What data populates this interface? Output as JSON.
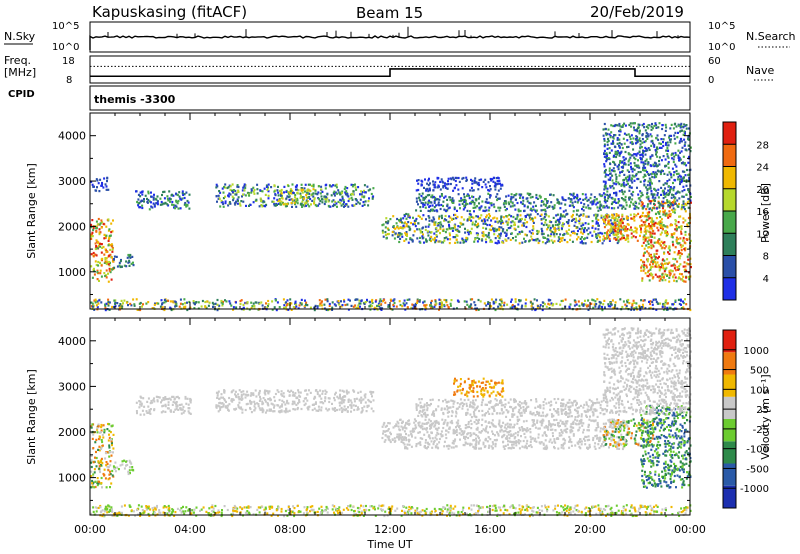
{
  "header": {
    "station": "Kapuskasing (fitACF)",
    "beam": "Beam 15",
    "date": "20/Feb/2019"
  },
  "nsky_panel": {
    "left_label": "N.Sky",
    "right_label": "N.Search",
    "ticks_left": [
      "10^5",
      "10^0"
    ],
    "ticks_right": [
      "10^5",
      "10^0"
    ]
  },
  "freq_panel": {
    "left_label_1": "Freq.",
    "left_label_2": "[MHz]",
    "cpid_label": "CPID",
    "right_label": "Nave",
    "ticks_left": [
      "18",
      "8"
    ],
    "ticks_right": [
      "60",
      "0"
    ],
    "cpid_text": "themis -3300"
  },
  "colors": {
    "power": [
      "#1f2fe6",
      "#2a4fa8",
      "#2e7f5a",
      "#48a84a",
      "#b6d82c",
      "#f0b800",
      "#f06a10",
      "#e02010"
    ],
    "velocity": [
      "#1c2fb0",
      "#2a5aa8",
      "#2e8a4a",
      "#6ccc30",
      "#c8c8c8",
      "#f0b800",
      "#f07a10",
      "#e02010"
    ]
  },
  "chart_data": [
    {
      "type": "heatmap",
      "name": "power",
      "xlabel": "",
      "ylabel": "Slant Range [km]",
      "x_ticks": [
        "00:00",
        "04:00",
        "08:00",
        "12:00",
        "16:00",
        "20:00",
        "00:00"
      ],
      "xlim": [
        0,
        24
      ],
      "ylim": [
        180,
        4500
      ],
      "y_ticks": [
        1000,
        2000,
        3000,
        4000
      ],
      "colorbar_label": "Power [dB]",
      "colorbar_ticks": [
        "4",
        "8",
        "12",
        "16",
        "20",
        "24",
        "28"
      ],
      "regions": [
        {
          "t0": 0.0,
          "t1": 0.9,
          "r0": 800,
          "r1": 2200,
          "level": [
            3,
            7
          ]
        },
        {
          "t0": 0.9,
          "t1": 1.7,
          "r0": 1100,
          "r1": 1400,
          "level": [
            1,
            3
          ]
        },
        {
          "t0": 0.0,
          "t1": 0.7,
          "r0": 2800,
          "r1": 3100,
          "level": [
            0,
            1
          ]
        },
        {
          "t0": 1.8,
          "t1": 4.0,
          "r0": 2400,
          "r1": 2800,
          "level": [
            0,
            3
          ]
        },
        {
          "t0": 5.0,
          "t1": 11.3,
          "r0": 2450,
          "r1": 2950,
          "level": [
            0,
            4
          ]
        },
        {
          "t0": 7.5,
          "t1": 9.0,
          "r0": 2500,
          "r1": 2850,
          "level": [
            3,
            5
          ]
        },
        {
          "t0": 11.6,
          "t1": 12.4,
          "r0": 1750,
          "r1": 2250,
          "level": [
            1,
            5
          ]
        },
        {
          "t0": 12.3,
          "t1": 21.5,
          "r0": 1650,
          "r1": 2300,
          "level": [
            0,
            5
          ]
        },
        {
          "t0": 13.0,
          "t1": 20.5,
          "r0": 2350,
          "r1": 2750,
          "level": [
            0,
            3
          ]
        },
        {
          "t0": 13.0,
          "t1": 16.5,
          "r0": 2800,
          "r1": 3100,
          "level": [
            0,
            1
          ]
        },
        {
          "t0": 20.5,
          "t1": 22.5,
          "r0": 1700,
          "r1": 2300,
          "level": [
            4,
            7
          ]
        },
        {
          "t0": 22.0,
          "t1": 24.0,
          "r0": 800,
          "r1": 2600,
          "level": [
            3,
            7
          ]
        },
        {
          "t0": 20.5,
          "t1": 24.0,
          "r0": 2400,
          "r1": 4300,
          "level": [
            0,
            3
          ]
        },
        {
          "t0": 0.0,
          "t1": 24.0,
          "r0": 180,
          "r1": 420,
          "level": [
            0,
            6
          ]
        }
      ]
    },
    {
      "type": "heatmap",
      "name": "velocity",
      "xlabel": "Time UT",
      "ylabel": "Slant Range [km]",
      "x_ticks": [
        "00:00",
        "04:00",
        "08:00",
        "12:00",
        "16:00",
        "20:00",
        "00:00"
      ],
      "xlim": [
        0,
        24
      ],
      "ylim": [
        180,
        4500
      ],
      "y_ticks": [
        1000,
        2000,
        3000,
        4000
      ],
      "colorbar_label": "Velocity [m s^-1]",
      "colorbar_ticks": [
        "1000",
        "500",
        "100",
        "25",
        "-25",
        "-100",
        "-500",
        "-1000"
      ],
      "regions": [
        {
          "t0": 0.0,
          "t1": 0.9,
          "r0": 800,
          "r1": 2200,
          "level": [
            2,
            6
          ]
        },
        {
          "t0": 0.9,
          "t1": 1.7,
          "r0": 1100,
          "r1": 1400,
          "level": [
            3,
            4
          ]
        },
        {
          "t0": 1.8,
          "t1": 4.0,
          "r0": 2400,
          "r1": 2800,
          "level": [
            4,
            4
          ]
        },
        {
          "t0": 5.0,
          "t1": 11.3,
          "r0": 2450,
          "r1": 2950,
          "level": [
            4,
            4
          ]
        },
        {
          "t0": 11.6,
          "t1": 12.4,
          "r0": 1750,
          "r1": 2250,
          "level": [
            4,
            4
          ]
        },
        {
          "t0": 12.3,
          "t1": 21.5,
          "r0": 1650,
          "r1": 2300,
          "level": [
            4,
            4
          ]
        },
        {
          "t0": 13.0,
          "t1": 20.5,
          "r0": 2350,
          "r1": 2750,
          "level": [
            4,
            4
          ]
        },
        {
          "t0": 14.5,
          "t1": 16.5,
          "r0": 2800,
          "r1": 3200,
          "level": [
            5,
            6
          ]
        },
        {
          "t0": 20.5,
          "t1": 22.5,
          "r0": 1700,
          "r1": 2300,
          "level": [
            2,
            6
          ]
        },
        {
          "t0": 22.0,
          "t1": 24.0,
          "r0": 800,
          "r1": 2600,
          "level": [
            1,
            3
          ]
        },
        {
          "t0": 20.5,
          "t1": 24.0,
          "r0": 2400,
          "r1": 4300,
          "level": [
            4,
            4
          ]
        },
        {
          "t0": 0.0,
          "t1": 24.0,
          "r0": 180,
          "r1": 420,
          "level": [
            3,
            5
          ]
        }
      ]
    }
  ],
  "freq_series": {
    "type": "step",
    "steps": [
      {
        "t0": 0.0,
        "t1": 12.0,
        "freq": 10.5
      },
      {
        "t0": 12.0,
        "t1": 21.8,
        "freq": 13.2
      },
      {
        "t0": 21.8,
        "t1": 24.0,
        "freq": 10.5
      }
    ],
    "nave": 37
  }
}
